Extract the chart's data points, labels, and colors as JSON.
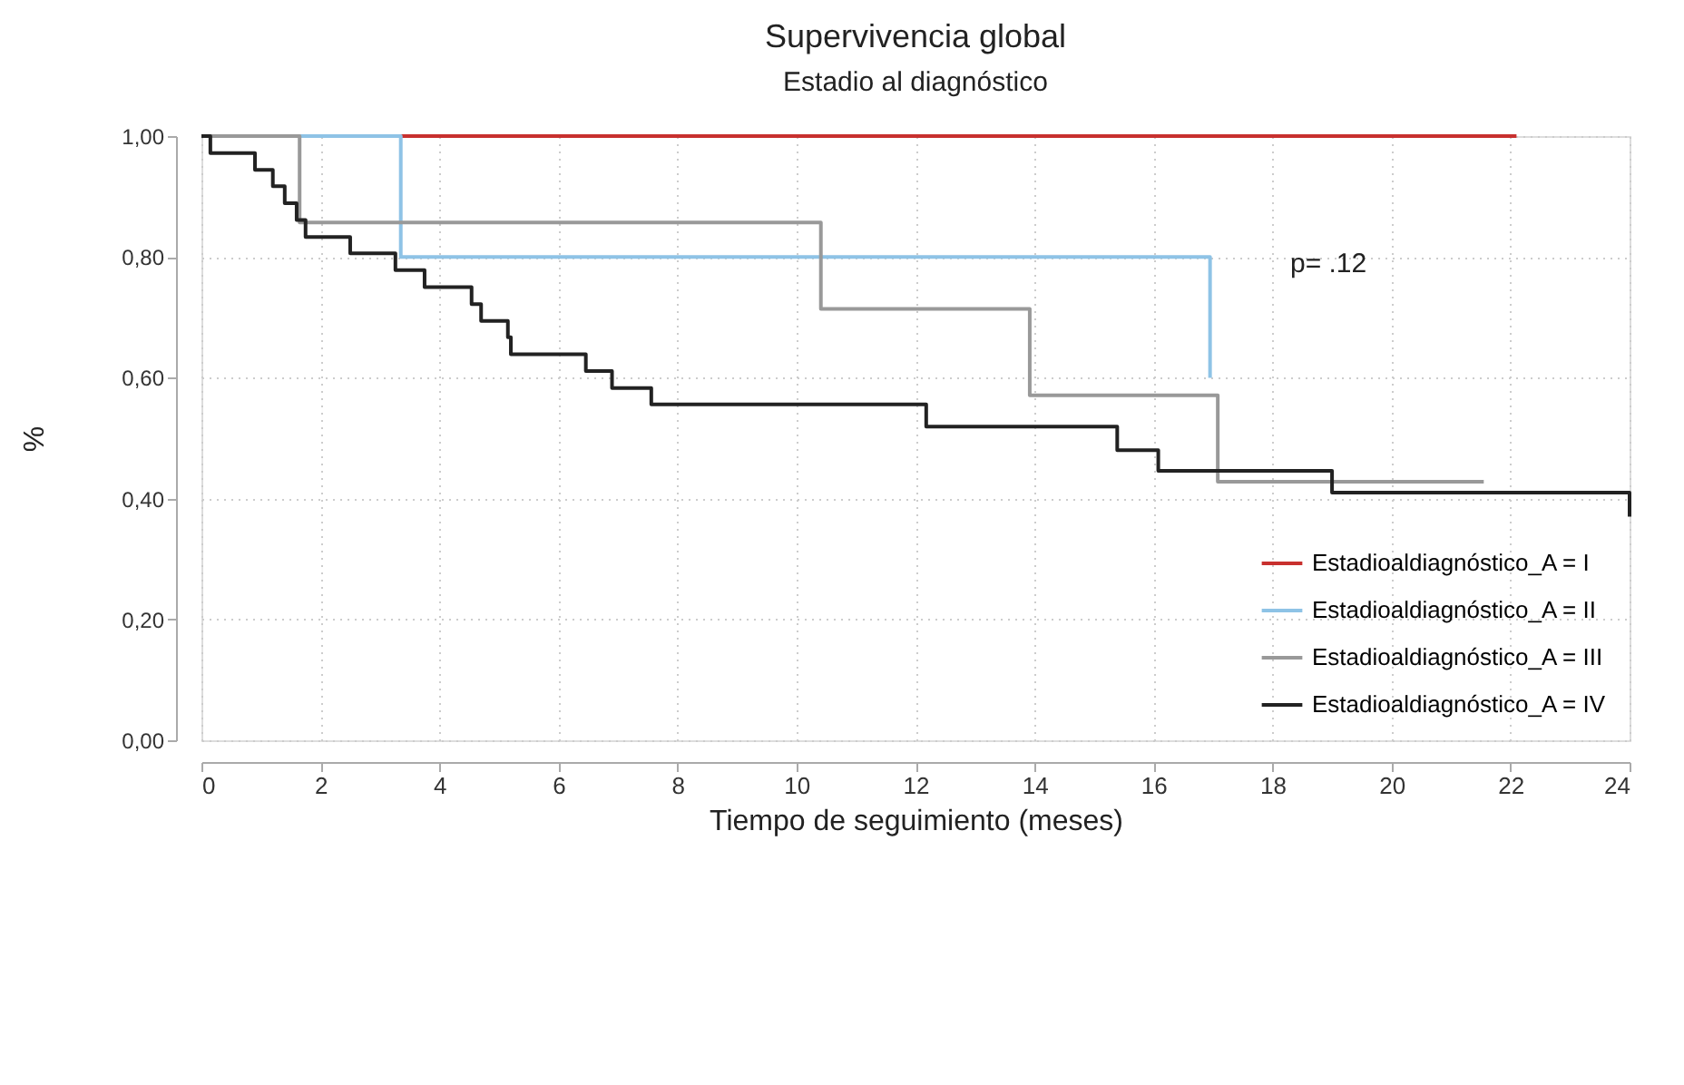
{
  "chart_data": {
    "type": "step",
    "title": "Supervivencia global",
    "subtitle": "Estadio al diagnóstico",
    "xlabel": "Tiempo de seguimiento (meses)",
    "ylabel": "%",
    "annotations": [
      "p= .12"
    ],
    "series": [
      {
        "name": "Estadioaldiagnóstico_A = I",
        "color": "#c8302e",
        "x": [
          0,
          22.1
        ],
        "values": [
          1.0,
          1.0
        ]
      },
      {
        "name": "Estadioaldiagnóstico_A = II",
        "color": "#8ec3e6",
        "x": [
          0,
          3.35,
          16.95
        ],
        "values": [
          1.0,
          0.8,
          0.6
        ]
      },
      {
        "name": "Estadioaldiagnóstico_A = III",
        "color": "#999999",
        "x": [
          0,
          1.65,
          10.41,
          13.92,
          17.08,
          21.55
        ],
        "values": [
          1.0,
          0.857,
          0.714,
          0.571,
          0.428,
          0.428
        ]
      },
      {
        "name": "Estadioaldiagnóstico_A = IV",
        "color": "#222222",
        "x": [
          0,
          0.15,
          0.9,
          1.2,
          1.4,
          1.6,
          1.75,
          2.5,
          3.26,
          3.75,
          4.54,
          4.7,
          5.15,
          5.2,
          6.46,
          6.9,
          7.56,
          12.18,
          15.39,
          16.08,
          19.0,
          24.0
        ],
        "values": [
          1.0,
          0.972,
          0.944,
          0.917,
          0.889,
          0.861,
          0.833,
          0.806,
          0.778,
          0.75,
          0.722,
          0.694,
          0.667,
          0.639,
          0.611,
          0.583,
          0.556,
          0.519,
          0.48,
          0.446,
          0.41,
          0.37
        ]
      }
    ],
    "xlim": [
      0,
      24
    ],
    "xticks": [
      0,
      2,
      4,
      6,
      8,
      10,
      12,
      14,
      16,
      18,
      20,
      22,
      24
    ],
    "ylim": [
      0,
      1
    ],
    "yticks": [
      {
        "value": 0,
        "label": "0,00"
      },
      {
        "value": 0.2,
        "label": "0,20"
      },
      {
        "value": 0.4,
        "label": "0,40"
      },
      {
        "value": 0.6,
        "label": "0,60"
      },
      {
        "value": 0.8,
        "label": "0,80"
      },
      {
        "value": 1,
        "label": "1,00"
      }
    ],
    "grid": true,
    "legend": "bottom right",
    "line_style": "solid",
    "marker": "none"
  }
}
